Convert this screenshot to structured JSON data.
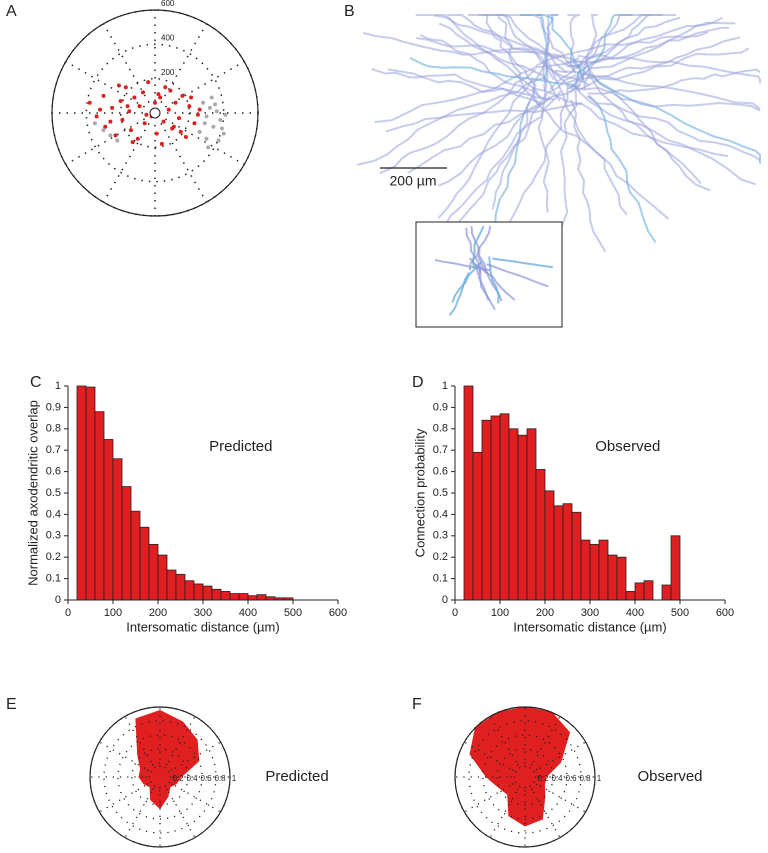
{
  "chart_data": [
    {
      "type": "polar_scatter",
      "panel_label": "A",
      "rlim": [
        0,
        600
      ],
      "rticks": [
        200,
        400,
        600
      ],
      "series": [
        {
          "color": "#e02020",
          "x": [
            -380,
            -340,
            -300,
            -290,
            -250,
            -230,
            -200,
            -190,
            -170,
            -150,
            -140,
            -120,
            -100,
            -90,
            -70,
            -60,
            -40,
            -20,
            0,
            10,
            30,
            50,
            60,
            80,
            100,
            120,
            140,
            160,
            180,
            200,
            230,
            260,
            -260,
            -210,
            -130,
            -50,
            40,
            90,
            150,
            210,
            -320,
            -160,
            20,
            110,
            250
          ],
          "y": [
            60,
            -20,
            100,
            -80,
            30,
            -130,
            70,
            -40,
            150,
            10,
            -100,
            90,
            -150,
            40,
            120,
            -60,
            180,
            -20,
            60,
            -120,
            90,
            -50,
            150,
            20,
            -90,
            60,
            -30,
            100,
            -140,
            40,
            -60,
            20,
            -50,
            160,
            -170,
            -10,
            -180,
            130,
            -110,
            90,
            20,
            40,
            110,
            -80,
            -10
          ]
        },
        {
          "color": "#aaaaaa",
          "x": [
            280,
            300,
            320,
            340,
            360,
            380,
            400,
            300,
            330,
            370,
            -300,
            -260,
            -220,
            -350,
            290,
            350,
            410,
            260,
            310,
            390
          ],
          "y": [
            60,
            -20,
            30,
            -80,
            10,
            -40,
            -120,
            -150,
            90,
            -160,
            -100,
            -130,
            -160,
            -60,
            -60,
            50,
            -10,
            -110,
            -200,
            -90
          ]
        }
      ]
    },
    {
      "type": "image",
      "panel_label": "B",
      "scale_bar_label": "200 µm"
    },
    {
      "type": "histogram",
      "panel_label": "C",
      "annotation": "Predicted",
      "xlabel": "Intersomatic distance (µm)",
      "ylabel": "Normalized axodendritic overlap",
      "color": "#e02020",
      "bins": [
        20,
        40,
        60,
        80,
        100,
        120,
        140,
        160,
        180,
        200,
        220,
        240,
        260,
        280,
        300,
        320,
        340,
        360,
        380,
        400,
        420,
        440,
        460,
        480,
        500
      ],
      "values": [
        1,
        0.995,
        0.88,
        0.75,
        0.66,
        0.53,
        0.415,
        0.34,
        0.26,
        0.21,
        0.14,
        0.12,
        0.09,
        0.075,
        0.065,
        0.05,
        0.04,
        0.03,
        0.03,
        0.02,
        0.025,
        0.015,
        0.01,
        0.01
      ],
      "xlim": [
        0,
        600
      ],
      "ylim": [
        0,
        1
      ],
      "xticks": [
        0,
        100,
        200,
        300,
        400,
        500,
        600
      ],
      "yticks": [
        0,
        0.1,
        0.2,
        0.3,
        0.4,
        0.5,
        0.6,
        0.7,
        0.8,
        0.9,
        1
      ]
    },
    {
      "type": "histogram",
      "panel_label": "D",
      "annotation": "Observed",
      "xlabel": "Intersomatic distance (µm)",
      "ylabel": "Connection probability",
      "color": "#e02020",
      "bins": [
        20,
        40,
        60,
        80,
        100,
        120,
        140,
        160,
        180,
        200,
        220,
        240,
        260,
        280,
        300,
        320,
        340,
        360,
        380,
        400,
        420,
        440,
        460,
        480,
        500
      ],
      "values": [
        1,
        0.69,
        0.84,
        0.86,
        0.87,
        0.8,
        0.77,
        0.8,
        0.61,
        0.51,
        0.44,
        0.45,
        0.41,
        0.28,
        0.26,
        0.28,
        0.21,
        0.2,
        0.04,
        0.08,
        0.09,
        0,
        0.07,
        0.3
      ],
      "xlim": [
        0,
        600
      ],
      "ylim": [
        0,
        1
      ],
      "xticks": [
        0,
        100,
        200,
        300,
        400,
        500,
        600
      ],
      "yticks": [
        0,
        0.1,
        0.2,
        0.3,
        0.4,
        0.5,
        0.6,
        0.7,
        0.8,
        0.9,
        1
      ]
    },
    {
      "type": "polar_area",
      "panel_label": "E",
      "annotation": "Predicted",
      "color": "#e02020",
      "theta": [
        0,
        22.5,
        45,
        67.5,
        90,
        112.5,
        135,
        157.5,
        180,
        202.5,
        225,
        247.5,
        270,
        292.5,
        315,
        337.5
      ],
      "values": [
        0.3,
        0.6,
        0.75,
        0.85,
        0.95,
        0.9,
        0.45,
        0.3,
        0.3,
        0.25,
        0.2,
        0.35,
        0.45,
        0.3,
        0.2,
        0.25
      ],
      "rlim": [
        0,
        1
      ],
      "rticks": [
        0.2,
        0.4,
        0.6,
        0.8,
        1
      ]
    },
    {
      "type": "polar_area",
      "panel_label": "F",
      "annotation": "Observed",
      "color": "#e02020",
      "theta": [
        0,
        22.5,
        45,
        67.5,
        90,
        112.5,
        135,
        157.5,
        180,
        202.5,
        225,
        247.5,
        270,
        292.5,
        315,
        337.5
      ],
      "values": [
        0.3,
        0.55,
        0.9,
        1,
        1,
        1,
        1,
        0.85,
        0.55,
        0.4,
        0.35,
        0.6,
        0.7,
        0.65,
        0.4,
        0.3
      ],
      "rlim": [
        0,
        1
      ],
      "rticks": [
        0.2,
        0.4,
        0.6,
        0.8,
        1
      ]
    }
  ]
}
